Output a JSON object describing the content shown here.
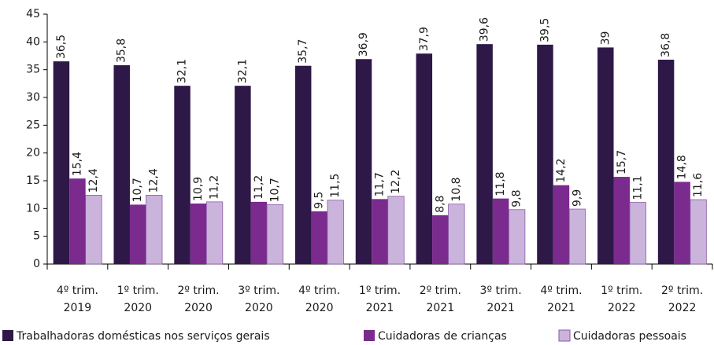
{
  "chart_data": {
    "type": "bar",
    "categories": [
      [
        "4º trim.",
        "2019"
      ],
      [
        "1º trim.",
        "2020"
      ],
      [
        "2º trim.",
        "2020"
      ],
      [
        "3º trim.",
        "2020"
      ],
      [
        "4º trim.",
        "2020"
      ],
      [
        "1º trim.",
        "2021"
      ],
      [
        "2º trim.",
        "2021"
      ],
      [
        "3º trim.",
        "2021"
      ],
      [
        "4º trim.",
        "2021"
      ],
      [
        "1º trim.",
        "2022"
      ],
      [
        "2º trim.",
        "2022"
      ]
    ],
    "series": [
      {
        "name": "Trabalhadoras domésticas nos serviços gerais",
        "color": "#2e1848",
        "values": [
          36.5,
          35.8,
          32.1,
          32.1,
          35.7,
          36.9,
          37.9,
          39.6,
          39.5,
          39,
          36.8
        ],
        "value_labels": [
          "36,5",
          "35,8",
          "32,1",
          "32,1",
          "35,7",
          "36,9",
          "37,9",
          "39,6",
          "39,5",
          "39",
          "36,8"
        ]
      },
      {
        "name": "Cuidadoras de crianças",
        "color": "#7b2a8e",
        "values": [
          15.4,
          10.7,
          10.9,
          11.2,
          9.5,
          11.7,
          8.8,
          11.8,
          14.2,
          15.7,
          14.8
        ],
        "value_labels": [
          "15,4",
          "10,7",
          "10,9",
          "11,2",
          "9,5",
          "11,7",
          "8,8",
          "11,8",
          "14,2",
          "15,7",
          "14,8"
        ]
      },
      {
        "name": "Cuidadoras pessoais",
        "color": "#cbb4dc",
        "values": [
          12.4,
          12.4,
          11.2,
          10.7,
          11.5,
          12.2,
          10.8,
          9.8,
          9.9,
          11.1,
          11.6
        ],
        "value_labels": [
          "12,4",
          "12,4",
          "11,2",
          "10,7",
          "11,5",
          "12,2",
          "10,8",
          "9,8",
          "9,9",
          "11,1",
          "11,6"
        ]
      }
    ],
    "ylim": [
      0,
      45
    ],
    "yticks": [
      0,
      5,
      10,
      15,
      20,
      25,
      30,
      35,
      40,
      45
    ],
    "grid": false,
    "legend": "bottom"
  }
}
